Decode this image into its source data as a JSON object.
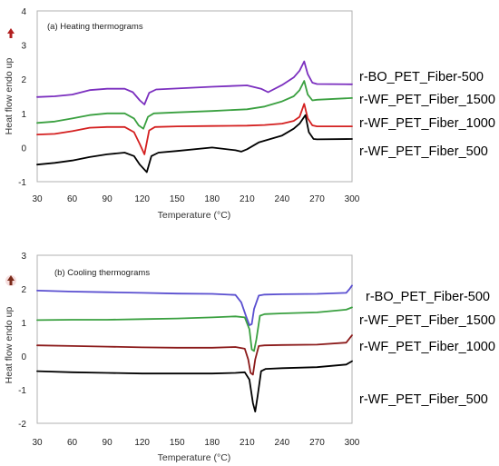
{
  "chart_data": [
    {
      "type": "line",
      "title": "(a) Heating thermograms",
      "xlabel": "Temperature (°C)",
      "ylabel": "Heat flow endo up",
      "xlim": [
        30,
        300
      ],
      "ylim": [
        -1,
        4
      ],
      "xticks": [
        30,
        60,
        90,
        120,
        150,
        180,
        210,
        240,
        270,
        300
      ],
      "yticks": [
        -1,
        0,
        1,
        2,
        3,
        4
      ],
      "grid": false,
      "legend_position": "right",
      "series": [
        {
          "name": "r-BO_PET_Fiber-500",
          "color": "#7b2fbf",
          "x": [
            30,
            45,
            60,
            75,
            90,
            105,
            112,
            118,
            122,
            126,
            132,
            150,
            180,
            210,
            222,
            228,
            240,
            250,
            255,
            259,
            262,
            266,
            270,
            300
          ],
          "y": [
            1.48,
            1.5,
            1.55,
            1.68,
            1.72,
            1.72,
            1.62,
            1.38,
            1.26,
            1.6,
            1.7,
            1.73,
            1.78,
            1.82,
            1.72,
            1.62,
            1.83,
            2.05,
            2.25,
            2.52,
            2.15,
            1.9,
            1.86,
            1.85
          ]
        },
        {
          "name": "r-WF_PET_Fiber_1500",
          "color": "#3aa040",
          "x": [
            30,
            45,
            60,
            75,
            90,
            105,
            113,
            117,
            121,
            125,
            130,
            150,
            180,
            210,
            225,
            240,
            250,
            255,
            259,
            262,
            266,
            270,
            300
          ],
          "y": [
            0.72,
            0.76,
            0.85,
            0.95,
            1.0,
            1.0,
            0.85,
            0.65,
            0.55,
            0.9,
            1.0,
            1.03,
            1.07,
            1.12,
            1.2,
            1.35,
            1.5,
            1.68,
            1.95,
            1.55,
            1.38,
            1.4,
            1.45
          ]
        },
        {
          "name": "r-WF_PET_Fiber_1000",
          "color": "#d42020",
          "x": [
            30,
            45,
            60,
            75,
            90,
            105,
            113,
            118,
            122,
            126,
            131,
            150,
            180,
            210,
            225,
            240,
            250,
            255,
            259,
            262,
            266,
            270,
            300
          ],
          "y": [
            0.38,
            0.4,
            0.48,
            0.58,
            0.6,
            0.6,
            0.45,
            0.1,
            -0.2,
            0.5,
            0.6,
            0.62,
            0.63,
            0.64,
            0.66,
            0.7,
            0.78,
            0.9,
            1.28,
            0.85,
            0.65,
            0.62,
            0.62
          ]
        },
        {
          "name": "r-WF_PET_Fiber_500",
          "color": "#000000",
          "x": [
            30,
            45,
            60,
            75,
            90,
            105,
            113,
            118,
            124,
            128,
            134,
            150,
            180,
            200,
            205,
            210,
            220,
            240,
            250,
            255,
            260,
            263,
            267,
            270,
            300
          ],
          "y": [
            -0.5,
            -0.45,
            -0.38,
            -0.28,
            -0.2,
            -0.15,
            -0.25,
            -0.5,
            -0.72,
            -0.25,
            -0.15,
            -0.1,
            0.0,
            -0.08,
            -0.12,
            -0.05,
            0.15,
            0.35,
            0.55,
            0.7,
            0.95,
            0.45,
            0.25,
            0.24,
            0.25
          ]
        }
      ]
    },
    {
      "type": "line",
      "title": "(b) Cooling thermograms",
      "xlabel": "Temperature (°C)",
      "ylabel": "Heat flow endo up",
      "xlim": [
        30,
        300
      ],
      "ylim": [
        -2,
        3
      ],
      "xticks": [
        30,
        60,
        90,
        120,
        150,
        180,
        210,
        240,
        270,
        300
      ],
      "yticks": [
        -2,
        -1,
        0,
        1,
        2,
        3
      ],
      "grid": false,
      "legend_position": "right",
      "series": [
        {
          "name": "r-BO_PET_Fiber-500",
          "color": "#5a4fd0",
          "x": [
            30,
            60,
            90,
            120,
            150,
            180,
            200,
            205,
            209,
            212,
            214,
            216,
            220,
            225,
            240,
            270,
            295,
            298,
            300
          ],
          "y": [
            1.95,
            1.92,
            1.9,
            1.88,
            1.86,
            1.85,
            1.82,
            1.6,
            1.2,
            0.92,
            0.95,
            1.4,
            1.8,
            1.83,
            1.84,
            1.85,
            1.88,
            2.0,
            2.1
          ]
        },
        {
          "name": "r-WF_PET_Fiber_1500",
          "color": "#3aa040",
          "x": [
            30,
            60,
            90,
            120,
            150,
            180,
            200,
            208,
            212,
            214,
            216,
            218,
            221,
            225,
            240,
            270,
            295,
            300
          ],
          "y": [
            1.07,
            1.08,
            1.08,
            1.1,
            1.12,
            1.15,
            1.18,
            1.15,
            0.8,
            0.2,
            0.15,
            0.5,
            1.2,
            1.25,
            1.27,
            1.3,
            1.38,
            1.45
          ]
        },
        {
          "name": "r-WF_PET_Fiber_1000",
          "color": "#8b1a1a",
          "x": [
            30,
            60,
            90,
            120,
            150,
            180,
            200,
            208,
            211,
            213,
            215,
            217,
            220,
            225,
            240,
            270,
            295,
            300
          ],
          "y": [
            0.32,
            0.3,
            0.28,
            0.26,
            0.25,
            0.25,
            0.27,
            0.22,
            -0.1,
            -0.5,
            -0.55,
            -0.1,
            0.3,
            0.32,
            0.33,
            0.34,
            0.4,
            0.62
          ]
        },
        {
          "name": "r-WF_PET_Fiber_500",
          "color": "#000000",
          "x": [
            30,
            60,
            90,
            120,
            150,
            180,
            200,
            208,
            212,
            215,
            217,
            219,
            222,
            226,
            240,
            270,
            295,
            300
          ],
          "y": [
            -0.45,
            -0.48,
            -0.5,
            -0.52,
            -0.52,
            -0.52,
            -0.5,
            -0.48,
            -0.7,
            -1.4,
            -1.65,
            -1.2,
            -0.45,
            -0.38,
            -0.36,
            -0.33,
            -0.25,
            -0.15
          ]
        }
      ]
    }
  ]
}
